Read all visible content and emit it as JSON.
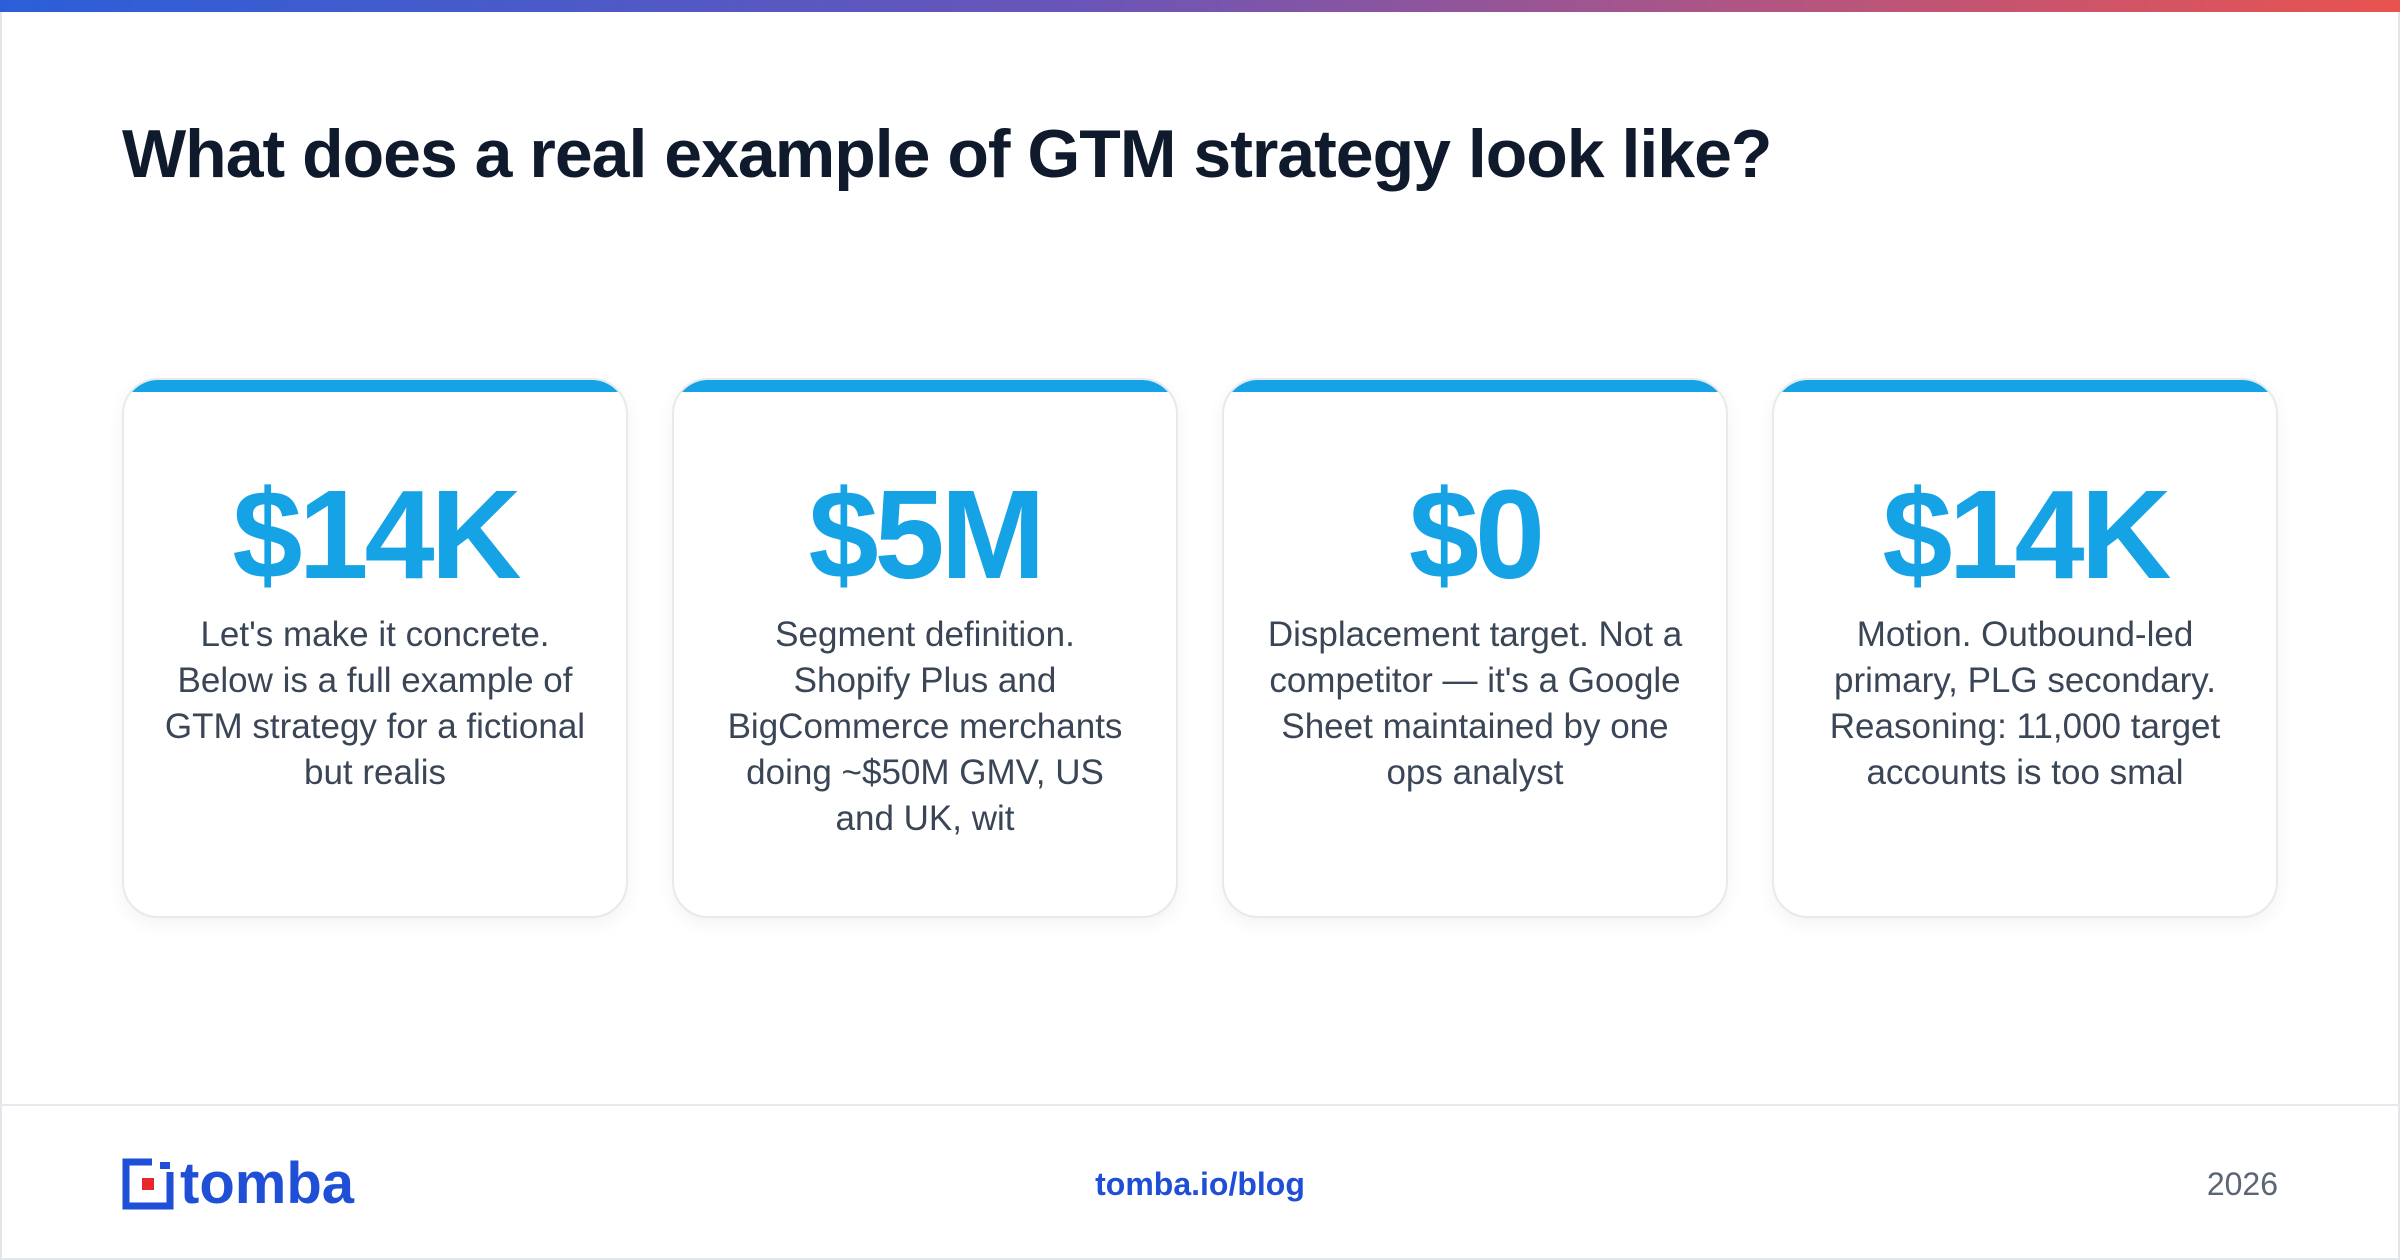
{
  "page": {
    "title": "What does a real example of GTM strategy look like?"
  },
  "cards": [
    {
      "stat": "$14K",
      "text": "Let's make it concrete. Below is a full example of GTM strategy for a fictional but realis"
    },
    {
      "stat": "$5M",
      "text": "Segment definition. Shopify Plus and BigCommerce merchants doing ~$50M GMV, US and UK, wit"
    },
    {
      "stat": "$0",
      "text": "Displacement target. Not a competitor — it's a Google Sheet maintained by one ops analyst"
    },
    {
      "stat": "$14K",
      "text": "Motion. Outbound-led primary, PLG secondary. Reasoning: 11,000 target accounts is too smal"
    }
  ],
  "footer": {
    "logo_text": "tomba",
    "url": "tomba.io/blog",
    "year": "2026"
  },
  "colors": {
    "accent": "#16a3e6",
    "brand": "#1f4fd6",
    "logo_red": "#e8262b",
    "title": "#0f1b2d"
  },
  "icons": {
    "logo_mark": "tomba-logo-mark-icon"
  }
}
